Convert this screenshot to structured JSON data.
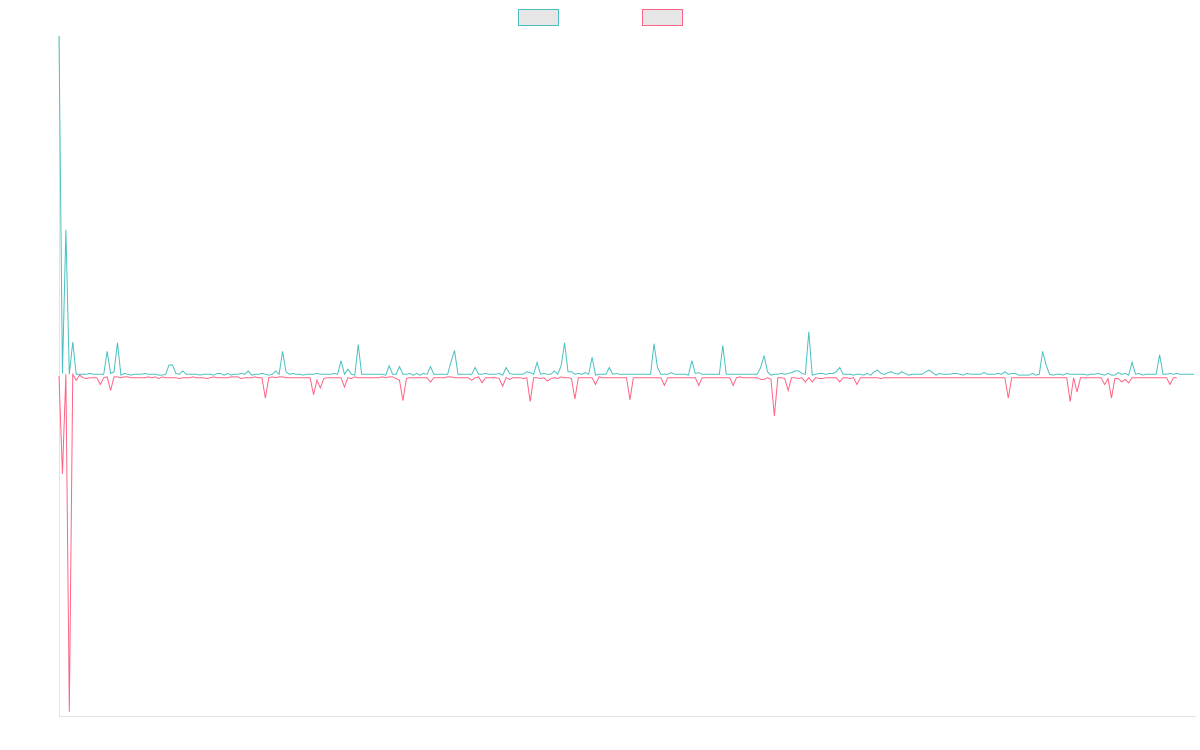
{
  "chart_data": {
    "type": "line",
    "title": "",
    "xlabel": "",
    "ylabel": "",
    "grid": false,
    "legend_position": "top-center",
    "xlim": [
      0,
      321
    ],
    "ylim": [
      -40,
      40
    ],
    "series": [
      {
        "color": "#4bc0c0",
        "values": [
          40.0,
          0.3,
          17.2,
          0.2,
          4.0,
          0.2,
          0.2,
          0.2,
          0.2,
          0.3,
          0.2,
          0.2,
          0.2,
          0.2,
          2.9,
          0.3,
          0.5,
          3.9,
          0.1,
          0.3,
          0.2,
          0.1,
          0.2,
          0.2,
          0.2,
          0.3,
          0.2,
          0.2,
          0.2,
          0.1,
          0.1,
          0.2,
          1.3,
          1.3,
          0.3,
          0.2,
          0.6,
          0.2,
          0.2,
          0.2,
          0.2,
          0.1,
          0.2,
          0.2,
          0.2,
          0.1,
          0.3,
          0.3,
          0.1,
          0.3,
          0.1,
          0.2,
          0.2,
          0.3,
          0.2,
          0.6,
          0.1,
          0.2,
          0.2,
          0.3,
          0.2,
          0.1,
          0.2,
          0.6,
          0.2,
          2.9,
          0.5,
          0.2,
          0.3,
          0.2,
          0.2,
          0.1,
          0.2,
          0.2,
          0.2,
          0.3,
          0.2,
          0.2,
          0.2,
          0.2,
          0.3,
          0.2,
          1.8,
          0.2,
          0.8,
          0.2,
          0.1,
          3.7,
          0.2,
          0.2,
          0.2,
          0.2,
          0.2,
          0.2,
          0.2,
          0.1,
          1.2,
          0.2,
          0.2,
          1.1,
          0.2,
          0.2,
          0.3,
          0.1,
          0.3,
          0.1,
          0.3,
          0.2,
          1.1,
          0.2,
          0.2,
          0.2,
          0.2,
          0.2,
          1.7,
          3.0,
          0.2,
          0.2,
          0.2,
          0.2,
          0.2,
          1.0,
          0.2,
          0.2,
          0.3,
          0.2,
          0.2,
          0.2,
          0.3,
          0.1,
          1.0,
          0.3,
          0.2,
          0.2,
          0.2,
          0.2,
          0.5,
          0.4,
          0.2,
          1.6,
          0.2,
          0.3,
          0.2,
          0.2,
          0.6,
          0.2,
          1.2,
          3.9,
          0.5,
          0.5,
          0.2,
          0.3,
          0.2,
          0.4,
          0.2,
          2.2,
          0.1,
          0.2,
          0.2,
          0.2,
          1.0,
          0.2,
          0.3,
          0.2,
          0.2,
          0.2,
          0.2,
          0.2,
          0.2,
          0.2,
          0.2,
          0.2,
          0.2,
          3.8,
          1.0,
          0.2,
          0.2,
          0.2,
          0.4,
          0.2,
          0.2,
          0.2,
          0.2,
          0.1,
          1.8,
          0.3,
          0.4,
          0.2,
          0.2,
          0.2,
          0.2,
          0.2,
          0.2,
          3.6,
          0.2,
          0.2,
          0.2,
          0.2,
          0.2,
          0.2,
          0.2,
          0.2,
          0.2,
          0.2,
          1.0,
          2.4,
          0.5,
          0.1,
          0.2,
          0.2,
          0.3,
          0.2,
          0.3,
          0.4,
          0.6,
          0.6,
          0.3,
          0.2,
          5.2,
          0.1,
          0.2,
          0.3,
          0.3,
          0.2,
          0.3,
          0.3,
          0.5,
          1.0,
          0.2,
          0.2,
          0.2,
          0.1,
          0.2,
          0.2,
          0.1,
          0.3,
          0.1,
          0.5,
          0.7,
          0.3,
          0.2,
          0.4,
          0.5,
          0.3,
          0.2,
          0.5,
          0.3,
          0.1,
          0.2,
          0.2,
          0.2,
          0.2,
          0.5,
          0.7,
          0.4,
          0.1,
          0.3,
          0.2,
          0.2,
          0.2,
          0.3,
          0.3,
          0.2,
          0.1,
          0.3,
          0.2,
          0.2,
          0.2,
          0.2,
          0.4,
          0.2,
          0.2,
          0.2,
          0.3,
          0.2,
          0.5,
          0.2,
          0.3,
          0.3,
          0.1,
          0.1,
          0.1,
          0.1,
          0.3,
          0.1,
          0.2,
          2.9,
          1.3,
          0.2,
          0.1,
          0.2,
          0.2,
          0.1,
          0.3,
          0.2,
          0.2,
          0.2,
          0.2,
          0.2,
          0.1,
          0.2,
          0.2,
          0.3,
          0.2,
          0.1,
          0.3,
          0.1,
          0.1,
          0.4,
          0.2,
          0.3,
          0.1,
          1.6,
          0.2,
          0.3,
          0.1,
          0.2,
          0.2,
          0.2,
          0.2,
          2.5,
          0.2,
          0.2,
          0.3,
          0.2,
          0.3,
          0.2,
          0.2,
          0.2,
          0.2,
          0.2
        ]
      },
      {
        "color": "#ff6384",
        "values": [
          0.0,
          -11.5,
          0.2,
          -39.5,
          0.2,
          -0.5,
          0.1,
          -0.2,
          -0.3,
          -0.2,
          -0.2,
          -0.2,
          -1.0,
          -0.2,
          -0.1,
          -1.7,
          -0.1,
          -0.1,
          -0.2,
          -0.1,
          -0.1,
          -0.2,
          -0.2,
          -0.2,
          -0.2,
          -0.2,
          -0.1,
          -0.2,
          -0.1,
          -0.3,
          -0.1,
          -0.2,
          -0.2,
          -0.2,
          -0.2,
          -0.3,
          -0.2,
          -0.2,
          -0.2,
          -0.1,
          -0.2,
          -0.2,
          -0.2,
          -0.3,
          -0.2,
          -0.1,
          -0.2,
          -0.2,
          -0.2,
          -0.2,
          -0.1,
          -0.1,
          -0.1,
          -0.3,
          -0.2,
          -0.2,
          -0.2,
          -0.1,
          -0.2,
          -0.2,
          -2.6,
          -0.2,
          -0.1,
          -0.2,
          -0.1,
          -0.1,
          -0.2,
          -0.2,
          -0.2,
          -0.2,
          -0.2,
          -0.2,
          -0.2,
          -0.2,
          -2.2,
          -0.5,
          -1.4,
          -0.3,
          -0.2,
          -0.2,
          -0.2,
          -0.2,
          -0.2,
          -1.3,
          -0.2,
          -0.3,
          -0.1,
          -0.2,
          -0.2,
          -0.2,
          -0.2,
          -0.2,
          -0.2,
          -0.2,
          -0.1,
          -0.2,
          -0.1,
          -0.1,
          -0.3,
          -0.5,
          -2.9,
          -0.3,
          -0.2,
          -0.2,
          -0.2,
          -0.2,
          -0.2,
          -0.2,
          -0.7,
          -0.2,
          -0.2,
          -0.2,
          -0.2,
          -0.1,
          -0.1,
          -0.2,
          -0.2,
          -0.2,
          -0.2,
          -0.2,
          -0.5,
          -0.2,
          -0.1,
          -0.8,
          -0.2,
          -0.2,
          -0.2,
          -0.2,
          -0.3,
          -1.2,
          -0.2,
          -0.4,
          -0.2,
          -0.2,
          -0.2,
          -0.3,
          -0.2,
          -3.0,
          -0.2,
          -0.2,
          -0.3,
          -0.2,
          -0.6,
          -0.3,
          -0.2,
          -0.3,
          -0.1,
          -0.2,
          -0.2,
          -0.3,
          -2.7,
          -0.2,
          -0.2,
          -0.2,
          -0.2,
          -0.2,
          -1.0,
          -0.1,
          -0.2,
          -0.2,
          -0.2,
          -0.2,
          -0.2,
          -0.2,
          -0.2,
          -0.2,
          -2.8,
          -0.2,
          -0.2,
          -0.2,
          -0.2,
          -0.2,
          -0.2,
          -0.2,
          -0.2,
          -0.2,
          -1.1,
          -0.2,
          -0.2,
          -0.2,
          -0.2,
          -0.2,
          -0.2,
          -0.2,
          -0.2,
          -0.2,
          -1.1,
          -0.2,
          -0.2,
          -0.2,
          -0.2,
          -0.2,
          -0.2,
          -0.2,
          -0.2,
          -0.2,
          -1.1,
          -0.2,
          -0.1,
          -0.2,
          -0.2,
          -0.2,
          -0.2,
          -0.2,
          -0.4,
          -0.4,
          -0.2,
          -0.4,
          -4.7,
          -0.2,
          -0.2,
          -0.3,
          -1.7,
          -0.2,
          -0.2,
          -0.3,
          -0.2,
          -0.7,
          -0.2,
          -0.7,
          -0.2,
          -0.3,
          -0.3,
          -0.2,
          -0.2,
          -0.2,
          -0.2,
          -0.7,
          -0.2,
          -0.2,
          -0.3,
          -0.2,
          -1.0,
          -0.2,
          -0.2,
          -0.2,
          -0.2,
          -0.2,
          -0.2,
          -0.3,
          -0.2,
          -0.2,
          -0.2,
          -0.2,
          -0.2,
          -0.2,
          -0.2,
          -0.2,
          -0.2,
          -0.2,
          -0.2,
          -0.2,
          -0.2,
          -0.2,
          -0.2,
          -0.2,
          -0.2,
          -0.2,
          -0.2,
          -0.2,
          -0.2,
          -0.2,
          -0.2,
          -0.2,
          -0.2,
          -0.2,
          -0.2,
          -0.2,
          -0.2,
          -0.2,
          -0.2,
          -0.2,
          -0.2,
          -0.2,
          -0.2,
          -0.2,
          -2.6,
          -0.2,
          -0.2,
          -0.2,
          -0.2,
          -0.2,
          -0.2,
          -0.2,
          -0.2,
          -0.2,
          -0.2,
          -0.2,
          -0.2,
          -0.2,
          -0.2,
          -0.2,
          -0.2,
          -0.2,
          -3.0,
          -0.2,
          -1.9,
          -0.2,
          -0.2,
          -0.2,
          -0.2,
          -0.2,
          -0.2,
          -0.2,
          -1.0,
          -0.3,
          -2.6,
          -0.3,
          -0.3,
          -0.7,
          -0.4,
          -0.8,
          -0.2,
          -0.2,
          -0.2,
          -0.2,
          -0.2,
          -0.2,
          -0.2,
          -0.2,
          -0.2,
          -0.2,
          -0.2,
          -1.0,
          -0.2,
          -0.2
        ]
      }
    ]
  }
}
